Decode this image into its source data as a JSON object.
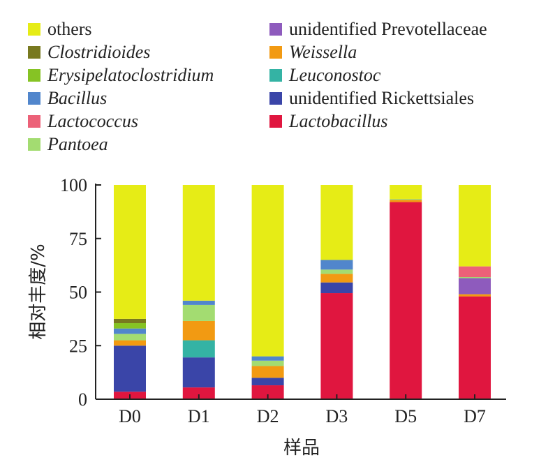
{
  "chart_data": {
    "type": "bar",
    "stacked": true,
    "title": "",
    "xlabel": "样品",
    "ylabel": "相对丰度/%",
    "ylim": [
      0,
      100
    ],
    "yticks": [
      0,
      25,
      50,
      75,
      100
    ],
    "categories": [
      "D0",
      "D1",
      "D2",
      "D3",
      "D5",
      "D7"
    ],
    "series": [
      {
        "name": "Lactobacillus",
        "italic": true,
        "color": "#e0163f",
        "values": [
          3.5,
          5.5,
          6.5,
          49.5,
          92,
          48
        ]
      },
      {
        "name": "unidentified Rickettsiales",
        "italic": false,
        "color": "#3a45a8",
        "values": [
          21.5,
          14,
          3.5,
          5,
          0,
          0
        ]
      },
      {
        "name": "Leuconostoc",
        "italic": true,
        "color": "#34b3a4",
        "values": [
          0,
          8,
          0,
          0,
          0,
          0
        ]
      },
      {
        "name": "Weissella",
        "italic": true,
        "color": "#f29a12",
        "values": [
          2.5,
          9,
          5.5,
          4,
          1,
          1
        ]
      },
      {
        "name": "unidentified Prevotellaceae",
        "italic": false,
        "color": "#8e5bbd",
        "values": [
          0,
          0,
          0,
          0,
          0,
          7.5
        ]
      },
      {
        "name": "Pantoea",
        "italic": true,
        "color": "#a3dc71",
        "values": [
          3,
          7.5,
          2.5,
          2,
          0.5,
          0.5
        ]
      },
      {
        "name": "Lactococcus",
        "italic": true,
        "color": "#ec6178",
        "values": [
          0,
          0,
          0,
          0,
          0,
          5
        ]
      },
      {
        "name": "Bacillus",
        "italic": true,
        "color": "#5186cc",
        "values": [
          2.5,
          2,
          2,
          4.5,
          0,
          0
        ]
      },
      {
        "name": "Erysipelatoclostridium",
        "italic": true,
        "color": "#86c324",
        "values": [
          2.5,
          0,
          0,
          0,
          0,
          0
        ]
      },
      {
        "name": "Clostridioides",
        "italic": true,
        "color": "#78791f",
        "values": [
          2,
          0,
          0,
          0,
          0,
          0
        ]
      },
      {
        "name": "others",
        "italic": false,
        "color": "#e6ec16",
        "values": [
          62.5,
          54,
          80,
          35,
          6.5,
          38
        ]
      }
    ],
    "legend_order": [
      "others",
      "unidentified Prevotellaceae",
      "Clostridioides",
      "Weissella",
      "Erysipelatoclostridium",
      "Leuconostoc",
      "Bacillus",
      "unidentified Rickettsiales",
      "Lactococcus",
      "Lactobacillus",
      "Pantoea"
    ],
    "legend_position": "top"
  }
}
